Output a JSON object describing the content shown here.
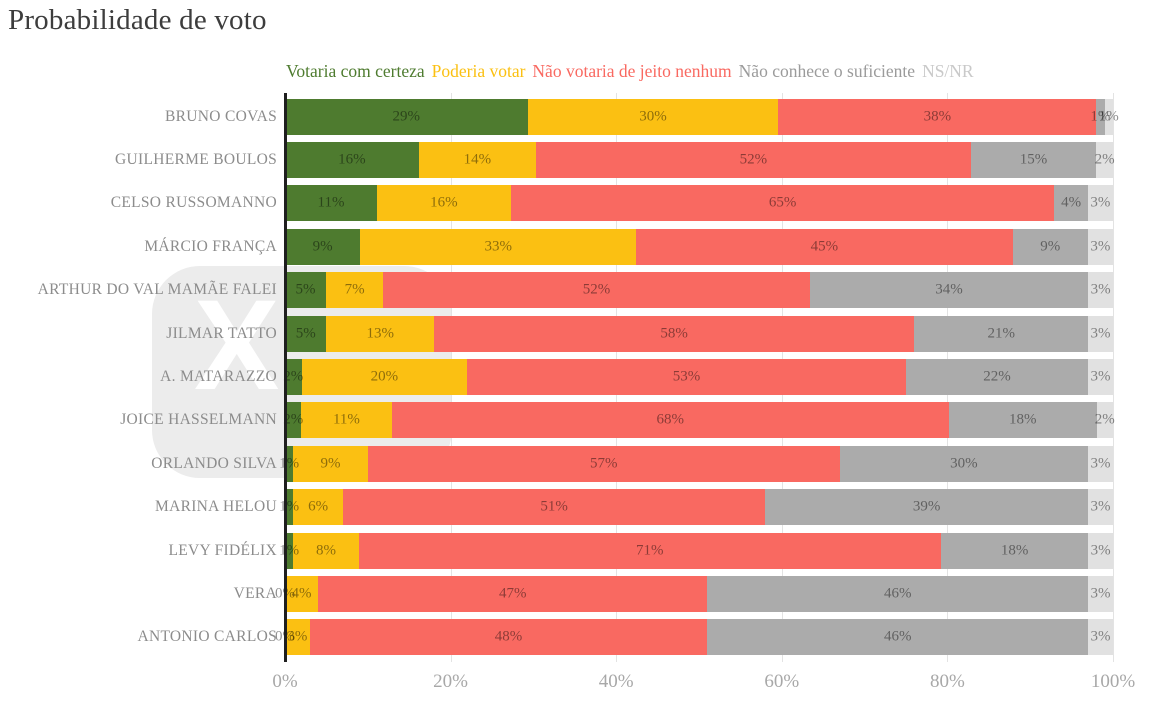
{
  "title": "Probabilidade de voto",
  "legend": [
    {
      "label": "Votaria com certeza",
      "color": "#4E7B2F"
    },
    {
      "label": "Poderia votar",
      "color": "#FBC012"
    },
    {
      "label": "Não votaria de jeito nenhum",
      "color": "#F96961"
    },
    {
      "label": "Não conhece o suficiente",
      "color": "#9B9B9B"
    },
    {
      "label": "NS/NR",
      "color": "#C9C9C9"
    }
  ],
  "watermark_glyph": "X",
  "chart_data": {
    "type": "bar",
    "orientation": "horizontal",
    "stacked": true,
    "title": "Probabilidade de voto",
    "legend_position": "top",
    "grid": true,
    "x_axis": {
      "range": [
        0,
        100
      ],
      "ticks": [
        "0%",
        "20%",
        "40%",
        "60%",
        "80%",
        "100%"
      ],
      "tick_positions": [
        0,
        20,
        40,
        60,
        80,
        100
      ]
    },
    "categories": [
      "BRUNO COVAS",
      "GUILHERME BOULOS",
      "CELSO RUSSOMANNO",
      "MÁRCIO FRANÇA",
      "ARTHUR DO VAL MAMÃE FALEI",
      "JILMAR TATTO",
      "A. MATARAZZO",
      "JOICE HASSELMANN",
      "ORLANDO SILVA",
      "MARINA HELOU",
      "LEVY FIDÉLIX",
      "VERA",
      "ANTONIO CARLOS"
    ],
    "series": [
      {
        "name": "Votaria com certeza",
        "color": "#4E7B2F",
        "values": [
          29,
          16,
          11,
          9,
          5,
          5,
          2,
          2,
          1,
          1,
          1,
          0,
          0
        ]
      },
      {
        "name": "Poderia votar",
        "color": "#FBC012",
        "values": [
          30,
          14,
          16,
          33,
          7,
          13,
          20,
          11,
          9,
          6,
          8,
          4,
          3
        ]
      },
      {
        "name": "Não votaria de jeito nenhum",
        "color": "#F96961",
        "values": [
          38,
          52,
          65,
          45,
          52,
          58,
          53,
          68,
          57,
          51,
          71,
          47,
          48
        ]
      },
      {
        "name": "Não conhece o suficiente",
        "color": "#ABABAB",
        "values": [
          1,
          15,
          4,
          9,
          34,
          21,
          22,
          18,
          30,
          39,
          18,
          46,
          46
        ]
      },
      {
        "name": "NS/NR",
        "color": "#E1E1E1",
        "values": [
          1,
          2,
          3,
          3,
          3,
          3,
          3,
          2,
          3,
          3,
          3,
          3,
          3
        ]
      }
    ],
    "value_suffix": "%"
  }
}
